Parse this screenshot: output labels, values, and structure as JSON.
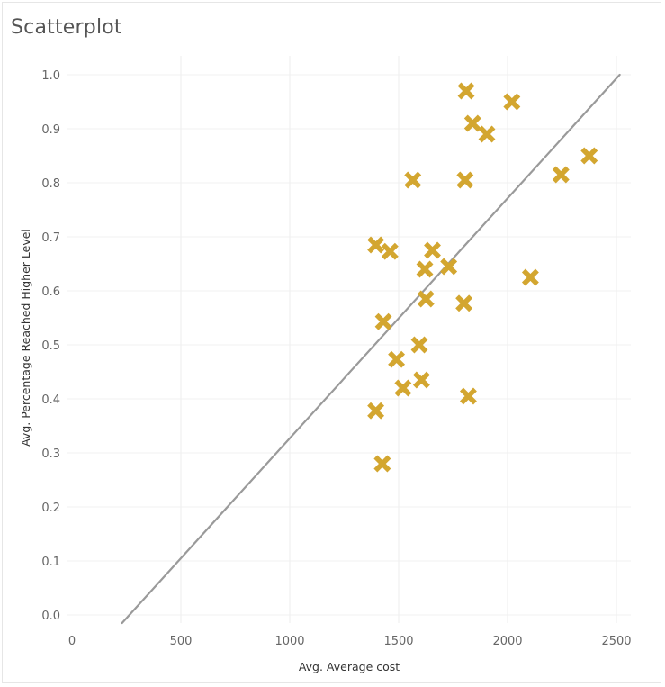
{
  "title": "Scatterplot",
  "chart_data": {
    "type": "scatter",
    "title": "Scatterplot",
    "xlabel": "Avg. Average cost",
    "ylabel": "Avg. Percentage Reached Higher Level",
    "xlim": [
      0,
      2500
    ],
    "ylim": [
      0,
      1.0
    ],
    "x_ticks": [
      "0",
      "500",
      "1000",
      "1500",
      "2000",
      "2500"
    ],
    "y_ticks": [
      "0.0",
      "0.1",
      "0.2",
      "0.3",
      "0.4",
      "0.5",
      "0.6",
      "0.7",
      "0.8",
      "0.9",
      "1.0"
    ],
    "grid": true,
    "marker": "x",
    "marker_color": "#d3a630",
    "trend_color": "#9a9a9a",
    "points": [
      {
        "x": 1810,
        "y": 0.97
      },
      {
        "x": 2020,
        "y": 0.95
      },
      {
        "x": 1840,
        "y": 0.91
      },
      {
        "x": 1905,
        "y": 0.89
      },
      {
        "x": 2375,
        "y": 0.85
      },
      {
        "x": 1565,
        "y": 0.805
      },
      {
        "x": 1805,
        "y": 0.805
      },
      {
        "x": 2245,
        "y": 0.815
      },
      {
        "x": 1395,
        "y": 0.685
      },
      {
        "x": 1460,
        "y": 0.673
      },
      {
        "x": 1655,
        "y": 0.675
      },
      {
        "x": 1730,
        "y": 0.645
      },
      {
        "x": 1620,
        "y": 0.64
      },
      {
        "x": 2105,
        "y": 0.625
      },
      {
        "x": 1625,
        "y": 0.585
      },
      {
        "x": 1800,
        "y": 0.577
      },
      {
        "x": 1430,
        "y": 0.543
      },
      {
        "x": 1595,
        "y": 0.5
      },
      {
        "x": 1490,
        "y": 0.473
      },
      {
        "x": 1605,
        "y": 0.435
      },
      {
        "x": 1520,
        "y": 0.42
      },
      {
        "x": 1820,
        "y": 0.405
      },
      {
        "x": 1395,
        "y": 0.378
      },
      {
        "x": 1425,
        "y": 0.28
      }
    ],
    "trend_line": {
      "x": [
        230,
        2515
      ],
      "y": [
        -0.015,
        1.0
      ]
    }
  }
}
